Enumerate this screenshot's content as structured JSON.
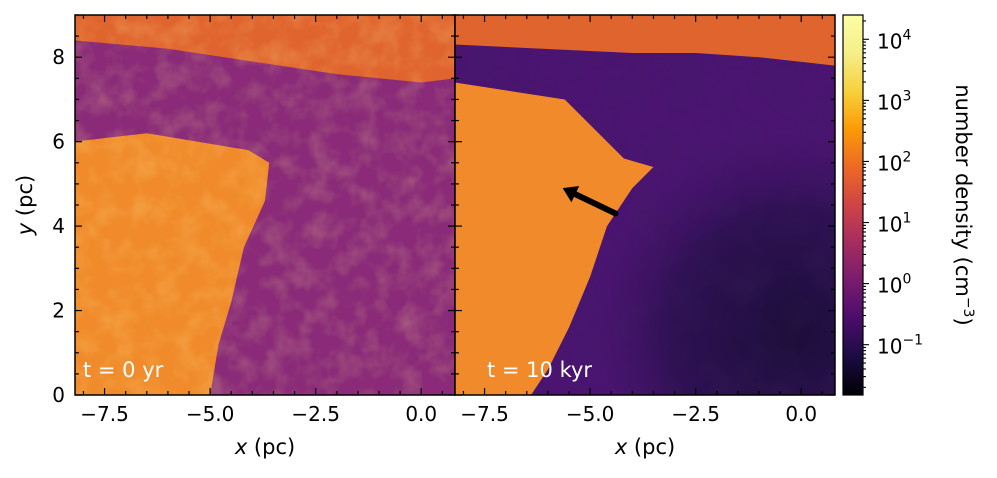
{
  "chart_data": {
    "type": "heatmap",
    "colormap": "inferno",
    "panels": [
      {
        "label": "t = 0 yr",
        "xlim": [
          -8.2,
          0.8
        ],
        "ylim": [
          0,
          9
        ],
        "xlabel": "x (pc)",
        "ylabel": "y (pc)",
        "xticks": [
          -7.5,
          -5.0,
          -2.5,
          0.0
        ],
        "xtick_labels": [
          "−7.5",
          "−5.0",
          "−2.5",
          "0.0"
        ],
        "yticks": [
          0,
          2,
          4,
          6,
          8
        ],
        "ytick_labels": [
          "0",
          "2",
          "4",
          "6",
          "8"
        ],
        "dense_region_boundary": [
          [
            -8.2,
            6.0
          ],
          [
            -6.5,
            6.2
          ],
          [
            -4.1,
            5.8
          ],
          [
            -3.6,
            5.5
          ],
          [
            -3.7,
            4.6
          ],
          [
            -4.2,
            3.5
          ],
          [
            -4.5,
            2.2
          ],
          [
            -4.8,
            1.2
          ],
          [
            -5.0,
            0.0
          ]
        ],
        "top_band_boundary": [
          [
            -8.2,
            8.4
          ],
          [
            -6.0,
            8.2
          ],
          [
            -4.0,
            7.9
          ],
          [
            -2.0,
            7.6
          ],
          [
            0.0,
            7.4
          ],
          [
            0.8,
            7.5
          ]
        ]
      },
      {
        "label": "t = 10 kyr",
        "xlim": [
          -8.2,
          0.8
        ],
        "ylim": [
          0,
          9
        ],
        "xlabel": "x (pc)",
        "xticks": [
          -7.5,
          -5.0,
          -2.5,
          0.0
        ],
        "xtick_labels": [
          "−7.5",
          "−5.0",
          "−2.5",
          "0.0"
        ],
        "dense_region_boundary": [
          [
            -8.2,
            7.4
          ],
          [
            -5.6,
            7.0
          ],
          [
            -4.9,
            6.3
          ],
          [
            -4.2,
            5.6
          ],
          [
            -3.5,
            5.4
          ],
          [
            -4.0,
            4.9
          ],
          [
            -4.6,
            4.0
          ],
          [
            -5.0,
            2.8
          ],
          [
            -5.5,
            1.6
          ],
          [
            -6.0,
            0.6
          ],
          [
            -6.4,
            0.0
          ]
        ],
        "top_band_boundary": [
          [
            -8.2,
            8.3
          ],
          [
            -4.0,
            8.1
          ],
          [
            -2.5,
            8.1
          ],
          [
            -1.0,
            8.0
          ],
          [
            0.8,
            7.8
          ]
        ],
        "arrow": {
          "from": [
            -4.4,
            4.3
          ],
          "to": [
            -5.65,
            4.9
          ]
        }
      }
    ],
    "colorbar": {
      "label": "number density (cm",
      "label_exponent": "−3",
      "label_close": ")",
      "scale": "log",
      "range": [
        0.015,
        25000
      ],
      "ticks": [
        0.1,
        1,
        10,
        100,
        1000,
        10000
      ],
      "tick_bases": [
        "10",
        "10",
        "10",
        "10",
        "10",
        "10"
      ],
      "tick_exponents": [
        "−1",
        "0",
        "1",
        "2",
        "3",
        "4"
      ]
    }
  }
}
